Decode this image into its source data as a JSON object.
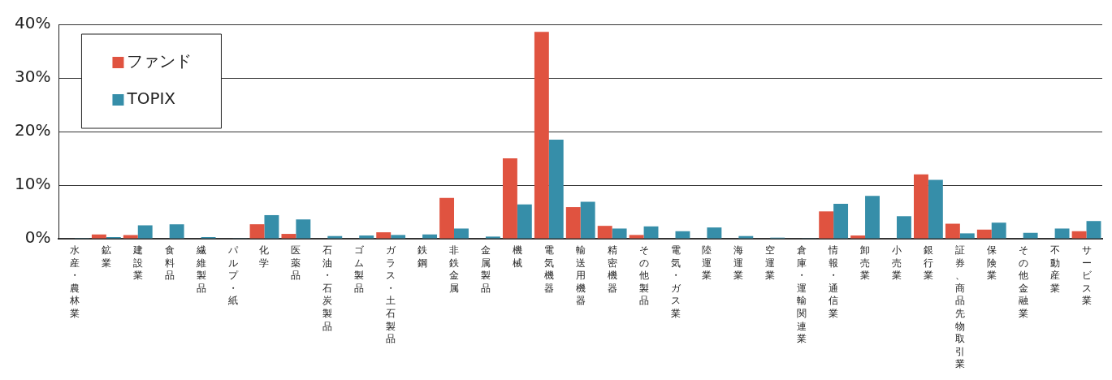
{
  "chart_data": {
    "type": "bar",
    "categories": [
      "水産・農林業",
      "鉱業",
      "建設業",
      "食料品",
      "繊維製品",
      "パルプ・紙",
      "化学",
      "医薬品",
      "石油・石炭製品",
      "ゴム製品",
      "ガラス・土石製品",
      "鉄鋼",
      "非鉄金属",
      "金属製品",
      "機械",
      "電気機器",
      "輸送用機器",
      "精密機器",
      "その他製品",
      "電気・ガス業",
      "陸運業",
      "海運業",
      "空運業",
      "倉庫・運輸関連業",
      "情報・通信業",
      "卸売業",
      "小売業",
      "銀行業",
      "証券、商品先物取引業",
      "保険業",
      "その他金融業",
      "不動産業",
      "サービス業"
    ],
    "series": [
      {
        "name": "ファンド",
        "color": "#e05340",
        "values": [
          0,
          0.8,
          0.7,
          0,
          0,
          0,
          2.7,
          0.9,
          0,
          0,
          1.2,
          0,
          7.6,
          0,
          15.0,
          38.6,
          5.9,
          2.4,
          0.7,
          0,
          0,
          0,
          0,
          0,
          5.1,
          0.6,
          0,
          12.0,
          2.8,
          1.7,
          0,
          0,
          1.4
        ]
      },
      {
        "name": "TOPIX",
        "color": "#368ea9",
        "values": [
          0.1,
          0.3,
          2.5,
          2.7,
          0.3,
          0.1,
          4.4,
          3.6,
          0.5,
          0.6,
          0.7,
          0.8,
          1.9,
          0.4,
          6.4,
          18.5,
          6.9,
          1.9,
          2.3,
          1.4,
          2.1,
          0.5,
          0.2,
          0.1,
          6.5,
          8.0,
          4.2,
          11.0,
          1.0,
          3.0,
          1.1,
          1.9,
          3.3
        ]
      }
    ],
    "ylim": [
      0,
      40
    ],
    "yticks": [
      {
        "value": 0,
        "label": "0%"
      },
      {
        "value": 10,
        "label": "10%"
      },
      {
        "value": 20,
        "label": "20%"
      },
      {
        "value": 30,
        "label": "30%"
      },
      {
        "value": 40,
        "label": "40%"
      }
    ],
    "grid": "y",
    "legend": "top left"
  }
}
